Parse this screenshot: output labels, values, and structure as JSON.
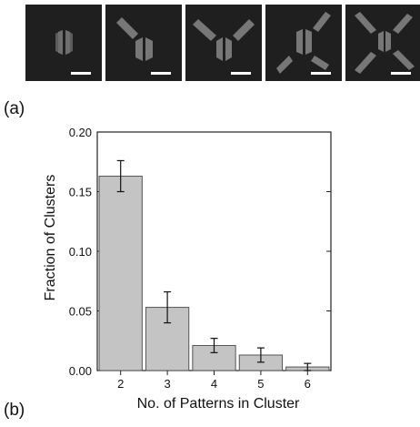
{
  "figure": {
    "panel_labels": {
      "a": "(a)",
      "b": "(b)"
    },
    "micrographs": [
      {
        "arms": 2,
        "description_icon": "two-pattern-cluster"
      },
      {
        "arms": 3,
        "description_icon": "three-pattern-cluster"
      },
      {
        "arms": 4,
        "description_icon": "four-pattern-cluster"
      },
      {
        "arms": 5,
        "description_icon": "five-pattern-cluster"
      },
      {
        "arms": 6,
        "description_icon": "six-pattern-cluster"
      }
    ],
    "colors": {
      "micrograph_bg": "#1f1f1f",
      "pattern": "#7a7a7a",
      "scale_bar": "#ffffff",
      "bar_fill": "#c4c4c4",
      "bar_stroke": "#555555"
    }
  },
  "chart_data": {
    "type": "bar",
    "categories": [
      "2",
      "3",
      "4",
      "5",
      "6"
    ],
    "values": [
      0.163,
      0.053,
      0.021,
      0.013,
      0.003
    ],
    "error": [
      0.013,
      0.013,
      0.006,
      0.006,
      0.003
    ],
    "xlabel": "No. of Patterns in Cluster",
    "ylabel": "Fraction of Clusters",
    "ylim": [
      0,
      0.2
    ],
    "yticks": [
      "0.00",
      "0.05",
      "0.10",
      "0.15",
      "0.20"
    ],
    "grid": false,
    "legend": "none"
  }
}
